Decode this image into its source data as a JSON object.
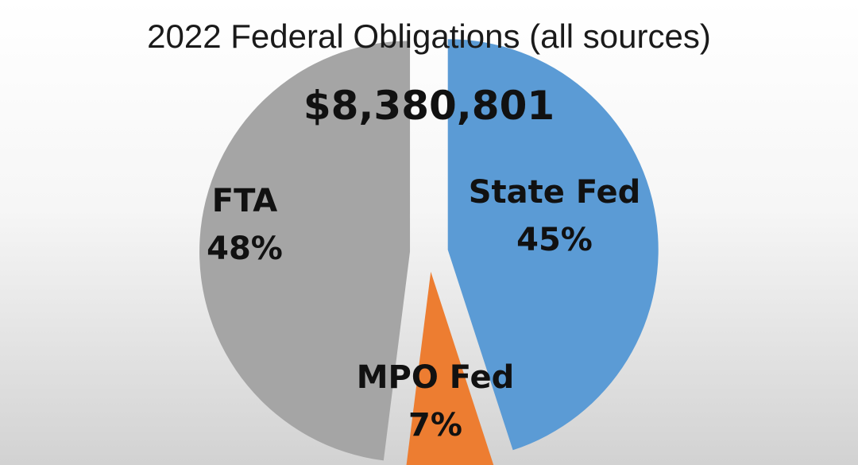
{
  "chart_data": {
    "type": "pie",
    "title": "2022 Federal Obligations (all sources)",
    "total": "$8,380,801",
    "slices": [
      {
        "name": "State Fed",
        "value": 45,
        "label": "45%",
        "color": "#5b9bd5"
      },
      {
        "name": "MPO Fed",
        "value": 7,
        "label": "7%",
        "color": "#ed7d31"
      },
      {
        "name": "FTA",
        "value": 48,
        "label": "48%",
        "color": "#a5a5a5"
      }
    ],
    "legend": "none",
    "exploded": true
  }
}
